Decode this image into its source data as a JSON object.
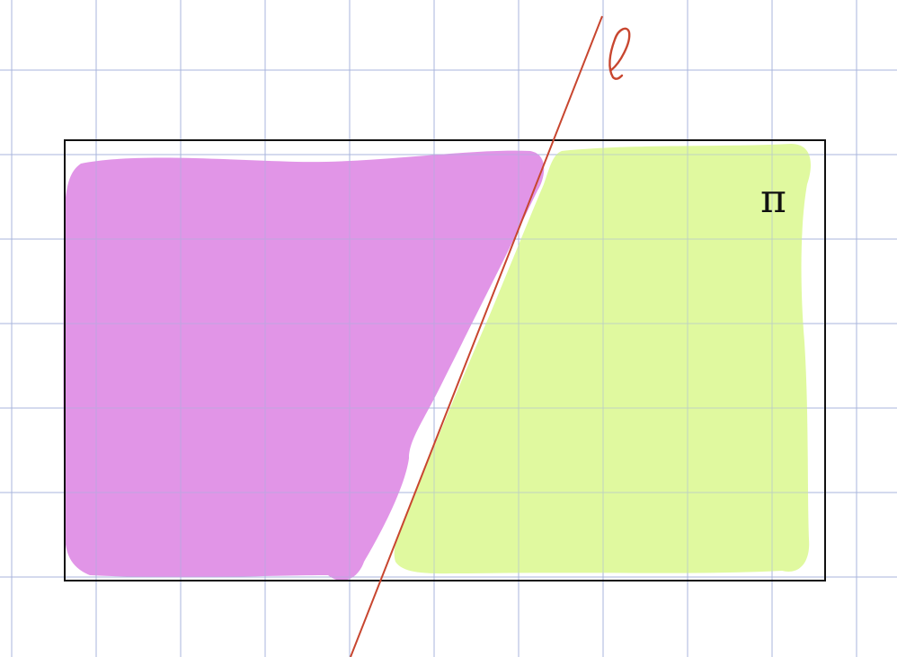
{
  "labels": {
    "line": "ℓ",
    "plane": "π"
  },
  "colors": {
    "background": "#ffffff",
    "grid": "#a9b6dc",
    "frame": "#111111",
    "left_region": "#df8fe6",
    "right_region": "#def99a",
    "line": "#c8462f",
    "plane_label": "#111111"
  },
  "grid": {
    "visible": true
  }
}
